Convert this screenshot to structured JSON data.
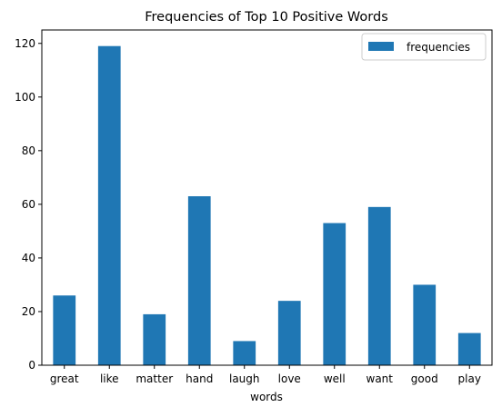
{
  "chart_data": {
    "type": "bar",
    "title": "Frequencies of Top 10 Positive Words",
    "xlabel": "words",
    "ylabel": "",
    "categories": [
      "great",
      "like",
      "matter",
      "hand",
      "laugh",
      "love",
      "well",
      "want",
      "good",
      "play"
    ],
    "series": [
      {
        "name": "frequencies",
        "values": [
          26,
          119,
          19,
          63,
          9,
          24,
          53,
          59,
          30,
          12
        ],
        "color": "#1f77b4"
      }
    ],
    "ylim": [
      0,
      125
    ],
    "yticks": [
      0,
      20,
      40,
      60,
      80,
      100,
      120
    ],
    "grid": false,
    "legend": "top-right"
  }
}
